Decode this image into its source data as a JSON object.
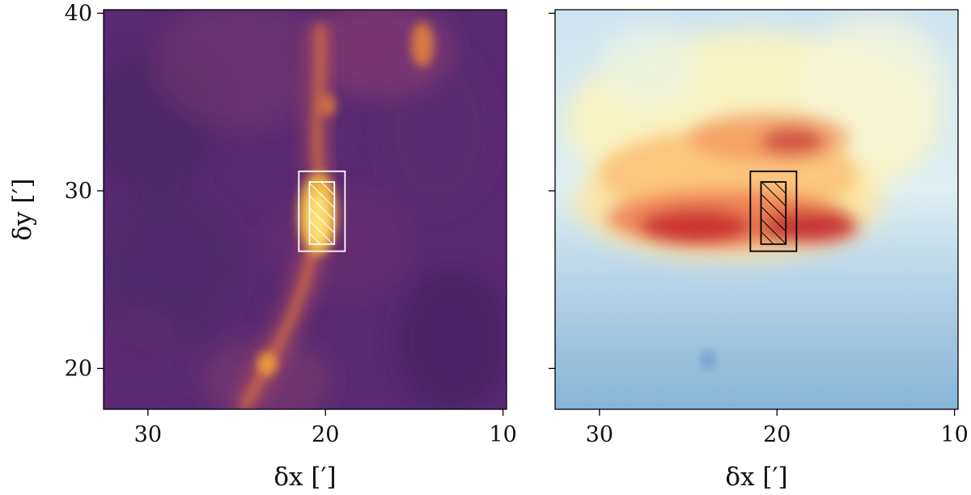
{
  "chart_data": [
    {
      "type": "heatmap",
      "panel": "left",
      "colormap": "inferno",
      "xlabel": "δx [′]",
      "ylabel": "δy [′]",
      "xlim": [
        32.5,
        9.8
      ],
      "ylim": [
        17.7,
        40.2
      ],
      "xticks": [
        30,
        20,
        10
      ],
      "yticks": [
        20,
        30,
        40
      ],
      "xtick_labels": [
        "30",
        "20",
        "10"
      ],
      "ytick_labels": [
        "20",
        "30",
        "40"
      ],
      "annotations": [
        {
          "kind": "outer-box",
          "color": "#ffffff",
          "x": [
            21.5,
            18.9
          ],
          "y": [
            26.6,
            31.1
          ]
        },
        {
          "kind": "hatched-box",
          "color": "#ffffff",
          "x": [
            20.9,
            19.5
          ],
          "y": [
            27.0,
            30.5
          ]
        }
      ]
    },
    {
      "type": "heatmap",
      "panel": "right",
      "colormap": "RdYlBu_r",
      "xlabel": "δx [′]",
      "ylabel": "",
      "xlim": [
        32.5,
        9.8
      ],
      "ylim": [
        17.7,
        40.2
      ],
      "xticks": [
        30,
        20,
        10
      ],
      "yticks": [
        20,
        30,
        40
      ],
      "xtick_labels": [
        "30",
        "20",
        "10"
      ],
      "ytick_labels": [],
      "annotations": [
        {
          "kind": "outer-box",
          "color": "#000000",
          "x": [
            21.5,
            18.9
          ],
          "y": [
            26.6,
            31.1
          ]
        },
        {
          "kind": "hatched-box",
          "color": "#000000",
          "x": [
            20.9,
            19.5
          ],
          "y": [
            27.0,
            30.5
          ]
        }
      ]
    }
  ]
}
